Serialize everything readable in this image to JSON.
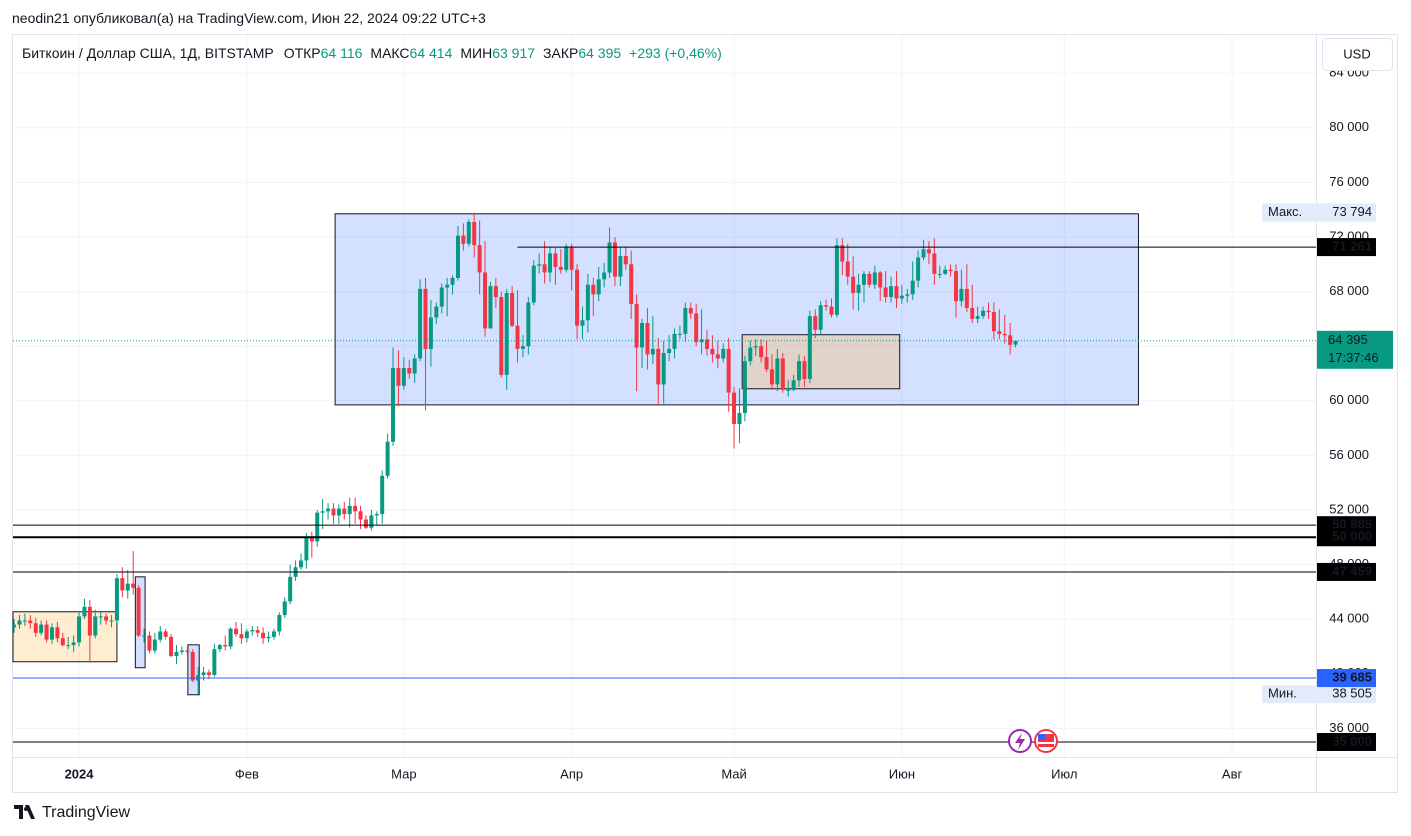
{
  "header": "neodin21 опубликовал(а) на TradingView.com, Июн 22, 2024 09:22 UTC+3",
  "footer": "TradingView",
  "chart_data": {
    "type": "candlestick",
    "title": "Биткоин / Доллар США, 1Д, BITSTAMP",
    "currency": "USD",
    "legend_fields": [
      {
        "label": "ОТКР",
        "value": "64 116"
      },
      {
        "label": "МАКС",
        "value": "64 414"
      },
      {
        "label": "МИН",
        "value": "63 917"
      },
      {
        "label": "ЗАКР",
        "value": "64 395"
      }
    ],
    "change": "+293 (+0,46%)",
    "up_color": "#089981",
    "down_color": "#f23645",
    "x": [
      -12,
      -11,
      -10,
      -9,
      -8,
      -7,
      -6,
      -5,
      -4,
      -3,
      -2,
      -1,
      0,
      1,
      2,
      3,
      4,
      5,
      6,
      7,
      8,
      9,
      10,
      11,
      12,
      13,
      14,
      15,
      16,
      17,
      18,
      19,
      20,
      21,
      22,
      23,
      24,
      25,
      26,
      27,
      28,
      29,
      30,
      31,
      32,
      33,
      34,
      35,
      36,
      37,
      38,
      39,
      40,
      41,
      42,
      43,
      44,
      45,
      46,
      47,
      48,
      49,
      50,
      51,
      52,
      53,
      54,
      55,
      56,
      57,
      58,
      59,
      60,
      61,
      62,
      63,
      64,
      65,
      66,
      67,
      68,
      69,
      70,
      71,
      72,
      73,
      74,
      75,
      76,
      77,
      78,
      79,
      80,
      81,
      82,
      83,
      84,
      85,
      86,
      87,
      88,
      89,
      90,
      91,
      92,
      93,
      94,
      95,
      96,
      97,
      98,
      99,
      100,
      101,
      102,
      103,
      104,
      105,
      106,
      107,
      108,
      109,
      110,
      111,
      112,
      113,
      114,
      115,
      116,
      117,
      118,
      119,
      120,
      121,
      122,
      123,
      124,
      125,
      126,
      127,
      128,
      129,
      130,
      131,
      132,
      133,
      134,
      135,
      136,
      137,
      138,
      139,
      140,
      141,
      142,
      143,
      144,
      145,
      146,
      147,
      148,
      149,
      150,
      151,
      152,
      153,
      154,
      155,
      156,
      157,
      158,
      159,
      160,
      161,
      162,
      163,
      164,
      165,
      166,
      167,
      168,
      169,
      170,
      171,
      172,
      173
    ],
    "open": [
      43400,
      43600,
      43900,
      43900,
      43700,
      43000,
      43600,
      42500,
      43400,
      42600,
      42100,
      42100,
      42300,
      44200,
      44900,
      42800,
      44200,
      44200,
      43900,
      43900,
      47000,
      46100,
      46600,
      46300,
      42800,
      42800,
      41700,
      42500,
      43100,
      42700,
      41300,
      41600,
      41700,
      41600,
      39500,
      39900,
      40100,
      39900,
      41800,
      42100,
      42000,
      43300,
      42900,
      42600,
      43100,
      43200,
      43000,
      42600,
      42700,
      43100,
      44300,
      45300,
      47100,
      47800,
      48300,
      50000,
      49700,
      51800,
      51900,
      52100,
      51600,
      52100,
      51700,
      52300,
      51900,
      51300,
      50700,
      51600,
      51700,
      54500,
      57000,
      62400,
      61100,
      62400,
      62000,
      63100,
      68200,
      63800,
      66100,
      66900,
      68300,
      68500,
      69000,
      72100,
      71500,
      73100,
      71400,
      69400,
      65300,
      68400,
      67600,
      61900,
      67900,
      65500,
      63800,
      64000,
      67200,
      69900,
      70000,
      69400,
      70800,
      69800,
      69600,
      71300,
      69600,
      65500,
      65900,
      68500,
      67800,
      68900,
      69400,
      71600,
      69100,
      70600,
      70000,
      67100,
      63900,
      65700,
      63400,
      63800,
      61200,
      63500,
      63800,
      64900,
      64900,
      66800,
      66400,
      64300,
      64500,
      63800,
      63400,
      63100,
      63800,
      60600,
      58300,
      59100,
      62900,
      63900,
      64000,
      63200,
      62300,
      61200,
      63100,
      60800,
      60800,
      61500,
      62900,
      61600,
      66200,
      65200,
      67000,
      66900,
      66300,
      71400,
      70200,
      69100,
      67900,
      68500,
      69300,
      68500,
      69400,
      68300,
      67600,
      68400,
      67500,
      67700,
      67800,
      68800,
      70500,
      71100,
      70800,
      69300,
      69300,
      69600,
      69500,
      67300,
      68200,
      66800,
      66000,
      66200,
      66600,
      66500,
      65100,
      64900,
      64800,
      64116
    ],
    "high": [
      44000,
      44300,
      44400,
      44300,
      44100,
      43900,
      43900,
      43700,
      43800,
      43000,
      42700,
      42800,
      44600,
      45500,
      45400,
      44700,
      44500,
      44400,
      44300,
      47300,
      47800,
      47600,
      49000,
      46500,
      43300,
      43100,
      43000,
      43500,
      43300,
      42900,
      42100,
      42000,
      42000,
      41800,
      40500,
      40500,
      40300,
      42200,
      42200,
      42800,
      43400,
      43800,
      43700,
      43300,
      43500,
      43500,
      43400,
      43100,
      43300,
      44500,
      45600,
      48000,
      48300,
      48800,
      50300,
      50400,
      52000,
      52800,
      52500,
      52500,
      52400,
      52600,
      52900,
      52900,
      52300,
      51600,
      52000,
      51900,
      54900,
      57600,
      63900,
      63700,
      63200,
      63000,
      63400,
      68900,
      69000,
      67400,
      67200,
      68600,
      69000,
      69200,
      72800,
      73000,
      73300,
      73794,
      73200,
      71700,
      68700,
      69000,
      68000,
      68200,
      68400,
      68100,
      64800,
      67600,
      70300,
      70800,
      71700,
      71300,
      71200,
      71100,
      71500,
      71500,
      70000,
      66900,
      69300,
      69000,
      69800,
      70100,
      72700,
      72000,
      71300,
      71300,
      71000,
      67800,
      66000,
      66800,
      66200,
      64600,
      64400,
      64800,
      65300,
      65500,
      67200,
      67200,
      67100,
      66700,
      65200,
      64800,
      64400,
      64200,
      64600,
      61000,
      60900,
      63300,
      64400,
      64500,
      64500,
      64400,
      63400,
      63800,
      63500,
      61500,
      61900,
      63400,
      63300,
      66600,
      66700,
      67300,
      67400,
      67500,
      71900,
      71900,
      71500,
      70600,
      69300,
      69500,
      69500,
      69900,
      69500,
      69500,
      69100,
      69500,
      68500,
      68200,
      70200,
      71000,
      71800,
      71700,
      71900,
      69900,
      69900,
      70000,
      70000,
      69600,
      70000,
      68500,
      66900,
      66900,
      67200,
      67200,
      66700,
      66300,
      65700,
      64414
    ],
    "low": [
      43000,
      43300,
      43500,
      43300,
      42700,
      42800,
      42300,
      42200,
      42300,
      42000,
      41800,
      41600,
      42000,
      44000,
      40800,
      42600,
      43600,
      43600,
      43400,
      43700,
      45600,
      45500,
      45800,
      42700,
      42300,
      41500,
      41500,
      42300,
      42500,
      41200,
      40700,
      41400,
      41400,
      39400,
      38505,
      39500,
      39600,
      39800,
      41600,
      41700,
      41800,
      42700,
      42200,
      42300,
      42800,
      42700,
      42200,
      42300,
      42500,
      42800,
      44100,
      45100,
      46800,
      47600,
      47700,
      48500,
      49300,
      50600,
      51300,
      51000,
      51000,
      51300,
      50700,
      51000,
      50600,
      50600,
      50500,
      50900,
      51000,
      54300,
      56700,
      59600,
      60800,
      61600,
      61300,
      62900,
      59300,
      62500,
      65600,
      66400,
      66200,
      67800,
      68800,
      71000,
      71300,
      70500,
      67800,
      64700,
      65300,
      66800,
      61700,
      60800,
      65400,
      62800,
      63200,
      63400,
      67000,
      69300,
      68600,
      68700,
      68500,
      69300,
      69400,
      68100,
      64500,
      64500,
      65000,
      66200,
      67300,
      68300,
      69000,
      68400,
      68400,
      69600,
      66000,
      60700,
      62400,
      62300,
      62700,
      59700,
      59800,
      62900,
      63100,
      64500,
      64300,
      66000,
      64000,
      63400,
      63300,
      62800,
      62400,
      62800,
      59200,
      56500,
      56900,
      58500,
      62600,
      63300,
      62800,
      62100,
      60800,
      60700,
      60600,
      60300,
      60700,
      61000,
      61000,
      61300,
      64600,
      64900,
      66600,
      66100,
      66100,
      69200,
      68500,
      66700,
      66600,
      67200,
      68300,
      68200,
      67300,
      67200,
      67200,
      66800,
      67100,
      67200,
      67400,
      68300,
      70300,
      70000,
      68500,
      69000,
      69200,
      69100,
      66100,
      66900,
      66500,
      65700,
      65700,
      66000,
      66000,
      64500,
      64500,
      64200,
      63400,
      63917
    ],
    "close": [
      43600,
      43900,
      43900,
      43700,
      43000,
      43600,
      42500,
      43400,
      42600,
      42100,
      42100,
      42300,
      44200,
      44900,
      42800,
      44200,
      44200,
      43900,
      43900,
      47000,
      46100,
      46600,
      46300,
      42800,
      42800,
      41700,
      42500,
      43100,
      42700,
      41300,
      41600,
      41700,
      41600,
      39500,
      39900,
      40100,
      39900,
      41800,
      42100,
      42000,
      43300,
      42900,
      42600,
      43100,
      43200,
      43000,
      42600,
      42700,
      43100,
      44300,
      45300,
      47100,
      47800,
      48300,
      50000,
      49700,
      51800,
      51900,
      52100,
      51600,
      52100,
      51700,
      52300,
      51900,
      51300,
      50700,
      51600,
      51700,
      54500,
      57000,
      62400,
      61100,
      62400,
      62000,
      63100,
      68200,
      63800,
      66100,
      66900,
      68300,
      68500,
      69000,
      72100,
      71500,
      73100,
      71400,
      69400,
      65300,
      68400,
      67600,
      61900,
      67900,
      65500,
      63800,
      64000,
      67200,
      69900,
      70000,
      69400,
      70800,
      69800,
      69600,
      71300,
      69600,
      65500,
      65900,
      68500,
      67800,
      68900,
      69400,
      71600,
      69100,
      70600,
      70000,
      67100,
      63900,
      65700,
      63400,
      63800,
      61200,
      63500,
      63800,
      64900,
      64900,
      66800,
      66400,
      64300,
      64500,
      63800,
      63400,
      63100,
      63800,
      60600,
      58300,
      59100,
      62900,
      63900,
      64000,
      63200,
      62300,
      61200,
      63100,
      60800,
      60800,
      61500,
      62900,
      61600,
      66200,
      65200,
      67000,
      66900,
      66300,
      71400,
      70200,
      69100,
      67900,
      68500,
      69300,
      68500,
      69400,
      68300,
      67600,
      68400,
      67500,
      67700,
      67800,
      68800,
      70500,
      71100,
      70800,
      69300,
      69300,
      69600,
      69500,
      67300,
      68200,
      66800,
      66000,
      66200,
      66600,
      66500,
      65100,
      64900,
      64800,
      64100,
      64395
    ],
    "xlim": [
      -12.2,
      228.5
    ],
    "xticks": [
      {
        "value": 0,
        "label": "2024"
      },
      {
        "value": 31,
        "label": "Фев"
      },
      {
        "value": 60,
        "label": "Мар"
      },
      {
        "value": 91,
        "label": "Апр"
      },
      {
        "value": 121,
        "label": "Май"
      },
      {
        "value": 152,
        "label": "Июн"
      },
      {
        "value": 182,
        "label": "Июл"
      },
      {
        "value": 213,
        "label": "Авг"
      }
    ],
    "ylim": [
      33900,
      86800
    ],
    "yticks": [
      {
        "value": 36000,
        "label": "36 000"
      },
      {
        "value": 40000,
        "label": "40 000"
      },
      {
        "value": 44000,
        "label": "44 000"
      },
      {
        "value": 48000,
        "label": "48 000"
      },
      {
        "value": 52000,
        "label": "52 000"
      },
      {
        "value": 56000,
        "label": "56 000"
      },
      {
        "value": 60000,
        "label": "60 000"
      },
      {
        "value": 64000,
        "label": "64 000"
      },
      {
        "value": 68000,
        "label": "68 000"
      },
      {
        "value": 72000,
        "label": "72 000"
      },
      {
        "value": 76000,
        "label": "76 000"
      },
      {
        "value": 80000,
        "label": "80 000"
      },
      {
        "value": 84000,
        "label": "84 000"
      }
    ],
    "grid": true,
    "rectangles": [
      {
        "x": [
          47.3,
          195.7
        ],
        "y": [
          59700,
          73700
        ],
        "fill": "rgba(41,98,255,0.2)",
        "stroke": "#131722"
      },
      {
        "x": [
          122.5,
          151.6
        ],
        "y": [
          60880,
          64840
        ],
        "fill": "rgba(255,183,77,0.3)",
        "stroke": "#131722"
      },
      {
        "x": [
          -12.2,
          7
        ],
        "y": [
          40880,
          44540
        ],
        "fill": "rgba(255,183,77,0.25)",
        "stroke": "#131722"
      },
      {
        "x": [
          10.4,
          12.2
        ],
        "y": [
          40440,
          47100
        ],
        "fill": "rgba(41,98,255,0.2)",
        "stroke": "#131722"
      },
      {
        "x": [
          20.1,
          22.2
        ],
        "y": [
          38460,
          42120
        ],
        "fill": "rgba(41,98,255,0.2)",
        "stroke": "#131722"
      }
    ],
    "hlines": [
      {
        "value": 71261,
        "label": "71 261",
        "from": 81,
        "color": "#000000",
        "width": 1
      },
      {
        "value": 50885,
        "label": "50 885",
        "color": "#000000",
        "width": 1
      },
      {
        "value": 50000,
        "label": "50 000",
        "color": "#000000",
        "width": 2
      },
      {
        "value": 47459,
        "label": "47 459",
        "color": "#000000",
        "width": 1
      },
      {
        "value": 39685,
        "label": "39 685",
        "color": "#2962ff",
        "width": 1
      },
      {
        "value": 35000,
        "label": "35 000",
        "color": "#000000",
        "width": 1
      }
    ],
    "current_price": {
      "value": 64395,
      "label": "64 395",
      "countdown": "17:37:46"
    },
    "max_marker": {
      "label": "Макс.",
      "value": 73794,
      "value_label": "73 794"
    },
    "min_marker": {
      "label": "Мин.",
      "value": 38505,
      "value_label": "38 505"
    }
  }
}
